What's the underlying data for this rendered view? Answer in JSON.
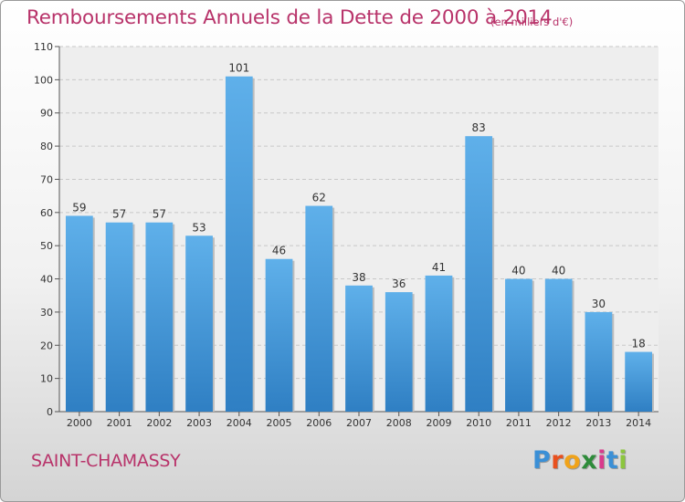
{
  "chart_data": {
    "type": "bar",
    "title": "Remboursements Annuels de la Dette de 2000 à 2014",
    "subtitle": "(en milliers d'€)",
    "categories": [
      "2000",
      "2001",
      "2002",
      "2003",
      "2004",
      "2005",
      "2006",
      "2007",
      "2008",
      "2009",
      "2010",
      "2011",
      "2012",
      "2013",
      "2014"
    ],
    "values": [
      59,
      57,
      57,
      53,
      101,
      46,
      62,
      38,
      36,
      41,
      83,
      40,
      40,
      30,
      18
    ],
    "ylim": [
      0,
      110
    ],
    "yticks": [
      0,
      10,
      20,
      30,
      40,
      50,
      60,
      70,
      80,
      90,
      100,
      110
    ],
    "grid": true,
    "bar_color": "#3f95d8"
  },
  "commune": "SAINT-CHAMASSY",
  "logo": {
    "text": "Proxiti",
    "letters": [
      "P",
      "r",
      "o",
      "x",
      "i",
      "t",
      "i"
    ],
    "colors": [
      "#3a8fd6",
      "#e8501e",
      "#f0a31a",
      "#2e8b3a",
      "#d93a8c",
      "#3a8fd6",
      "#8cc63e"
    ]
  }
}
